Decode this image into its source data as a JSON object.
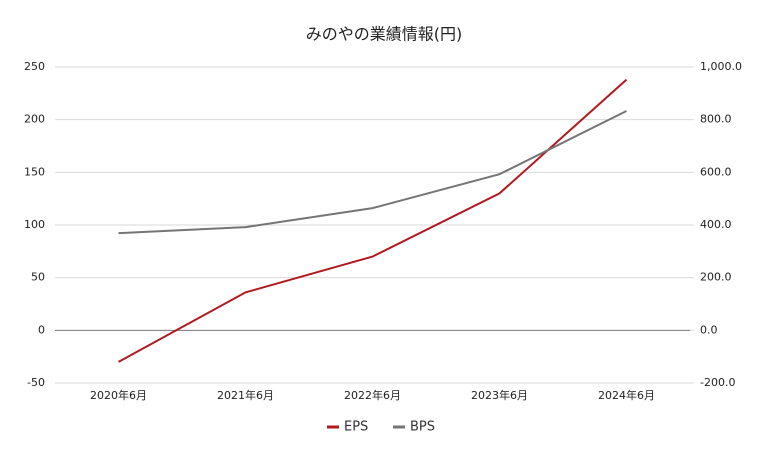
{
  "chart_data": {
    "type": "line",
    "title": "みのやの業績情報(円)",
    "categories": [
      "2020年6月",
      "2021年6月",
      "2022年6月",
      "2023年6月",
      "2024年6月"
    ],
    "series": [
      {
        "name": "EPS",
        "color": "#b0191e",
        "values": [
          -30,
          36,
          70,
          130,
          238
        ]
      },
      {
        "name": "BPS",
        "color": "#757575",
        "axis": "y2",
        "values": [
          369,
          392,
          464,
          593,
          833
        ]
      }
    ],
    "ylim": [
      -50,
      250
    ],
    "yticks": [
      -50,
      0,
      50,
      100,
      150,
      200,
      250
    ],
    "y2lim": [
      -200,
      1000
    ],
    "y2ticks": [
      {
        "value": -200,
        "label": "-200.0"
      },
      {
        "value": 0,
        "label": "0.0"
      },
      {
        "value": 200,
        "label": "200.0"
      },
      {
        "value": 400,
        "label": "400.0"
      },
      {
        "value": 600,
        "label": "600.0"
      },
      {
        "value": 800,
        "label": "800.0"
      },
      {
        "value": 1000,
        "label": "1,000.0"
      }
    ],
    "grid": true,
    "legend": "bottom"
  }
}
